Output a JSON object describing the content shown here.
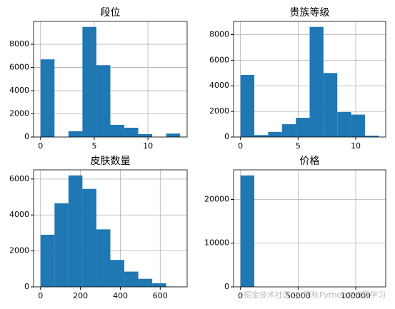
{
  "chart_data": [
    {
      "type": "histogram",
      "title": "段位",
      "bins": [
        0,
        1.3,
        2.6,
        3.9,
        5.2,
        6.5,
        7.8,
        9.1,
        10.4,
        11.7,
        13
      ],
      "counts": [
        6700,
        0,
        500,
        9500,
        6200,
        1050,
        800,
        250,
        0,
        300
      ],
      "color": "#1f77b4",
      "xlim": [
        -0.65,
        13.65
      ],
      "ylim": [
        0,
        9975
      ],
      "xticks": [
        0,
        5,
        10
      ],
      "yticks": [
        0,
        2000,
        4000,
        6000,
        8000
      ],
      "grid": true
    },
    {
      "type": "histogram",
      "title": "贵族等级",
      "bins": [
        0,
        1.2,
        2.4,
        3.6,
        4.8,
        6,
        7.2,
        8.4,
        9.6,
        10.8,
        12
      ],
      "counts": [
        4850,
        150,
        400,
        1000,
        1500,
        8600,
        5000,
        1950,
        1750,
        100
      ],
      "color": "#1f77b4",
      "xlim": [
        -0.6,
        12.6
      ],
      "ylim": [
        0,
        9030
      ],
      "xticks": [
        0,
        5,
        10
      ],
      "yticks": [
        0,
        2000,
        4000,
        6000,
        8000
      ],
      "grid": true
    },
    {
      "type": "histogram",
      "title": "皮肤数量",
      "bins": [
        0,
        70,
        140,
        210,
        280,
        350,
        420,
        490,
        560,
        630,
        700
      ],
      "counts": [
        2900,
        4650,
        6200,
        5450,
        3200,
        1500,
        850,
        450,
        200,
        20
      ],
      "color": "#1f77b4",
      "xlim": [
        -35,
        735
      ],
      "ylim": [
        0,
        6510
      ],
      "xticks": [
        0,
        200,
        400,
        600
      ],
      "yticks": [
        0,
        2000,
        4000,
        6000
      ],
      "grid": true
    },
    {
      "type": "histogram",
      "title": "价格",
      "bins": [
        0,
        12000,
        24000,
        36000,
        48000,
        60000,
        72000,
        84000,
        96000,
        108000,
        120000
      ],
      "counts": [
        25500,
        0,
        0,
        0,
        0,
        0,
        0,
        0,
        0,
        0
      ],
      "color": "#1f77b4",
      "xlim": [
        -6000,
        126000
      ],
      "ylim": [
        0,
        26775
      ],
      "xticks": [
        0,
        50000,
        100000
      ],
      "yticks": [
        0,
        10000,
        20000
      ],
      "grid": true
    }
  ],
  "watermark": "掘金技术社区 @ 阿秋Python与机器学习"
}
